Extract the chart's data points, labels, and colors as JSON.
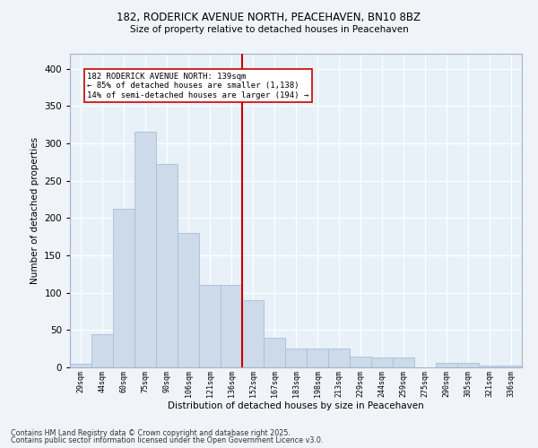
{
  "title1": "182, RODERICK AVENUE NORTH, PEACEHAVEN, BN10 8BZ",
  "title2": "Size of property relative to detached houses in Peacehaven",
  "xlabel": "Distribution of detached houses by size in Peacehaven",
  "ylabel": "Number of detached properties",
  "bar_color": "#ccdaea",
  "bar_edge_color": "#a8c0d4",
  "categories": [
    "29sqm",
    "44sqm",
    "60sqm",
    "75sqm",
    "90sqm",
    "106sqm",
    "121sqm",
    "136sqm",
    "152sqm",
    "167sqm",
    "183sqm",
    "198sqm",
    "213sqm",
    "229sqm",
    "244sqm",
    "259sqm",
    "275sqm",
    "290sqm",
    "305sqm",
    "321sqm",
    "336sqm"
  ],
  "values": [
    5,
    45,
    212,
    316,
    272,
    180,
    110,
    110,
    90,
    40,
    25,
    25,
    25,
    15,
    13,
    13,
    0,
    6,
    6,
    3,
    3
  ],
  "vline_color": "#cc0000",
  "annotation_text": "182 RODERICK AVENUE NORTH: 139sqm\n← 85% of detached houses are smaller (1,138)\n14% of semi-detached houses are larger (194) →",
  "annotation_box_color": "#ffffff",
  "annotation_box_edge": "#cc0000",
  "ylim": [
    0,
    420
  ],
  "yticks": [
    0,
    50,
    100,
    150,
    200,
    250,
    300,
    350,
    400
  ],
  "footer1": "Contains HM Land Registry data © Crown copyright and database right 2025.",
  "footer2": "Contains public sector information licensed under the Open Government Licence v3.0.",
  "bg_color": "#f0f4f8",
  "plot_bg_color": "#e8f0f8"
}
